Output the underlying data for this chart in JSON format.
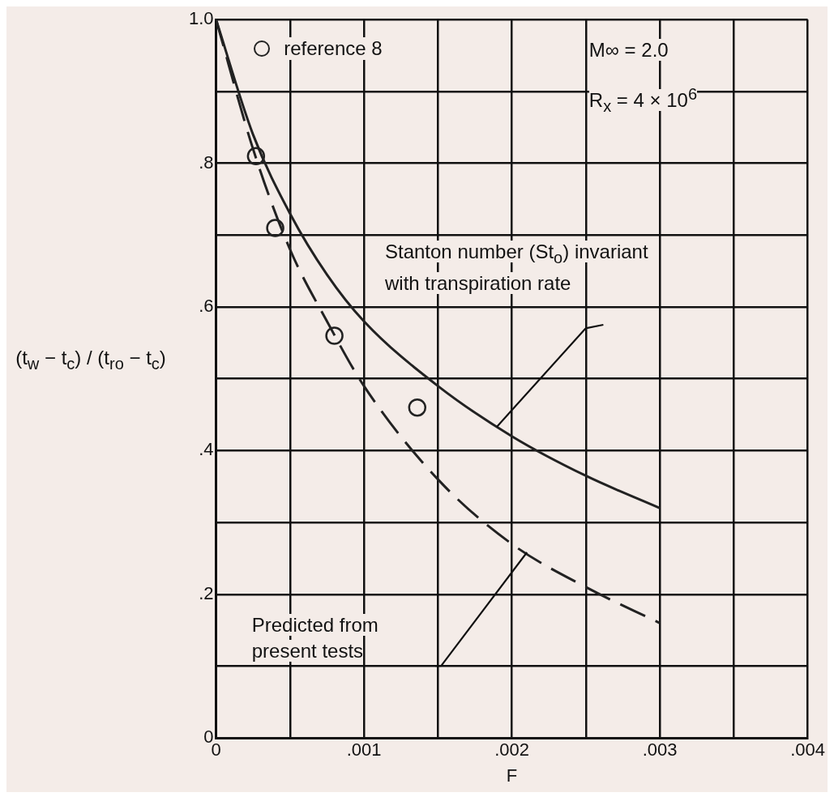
{
  "chart_data": {
    "type": "line",
    "xlabel": "F",
    "ylabel": "(t$_{w}$ − t$_{c}$) / (t$_{ro}$ − t$_{c}$)",
    "xlim": [
      0,
      0.004
    ],
    "ylim": [
      0,
      1.0
    ],
    "xticks": [
      {
        "value": 0,
        "label": "0"
      },
      {
        "value": 0.0005,
        "label": null
      },
      {
        "value": 0.001,
        "label": ".001"
      },
      {
        "value": 0.0015,
        "label": null
      },
      {
        "value": 0.002,
        "label": ".002"
      },
      {
        "value": 0.0025,
        "label": null
      },
      {
        "value": 0.003,
        "label": ".003"
      },
      {
        "value": 0.0035,
        "label": null
      },
      {
        "value": 0.004,
        "label": ".004"
      }
    ],
    "yticks": [
      {
        "value": 0,
        "label": "0"
      },
      {
        "value": 0.1,
        "label": null
      },
      {
        "value": 0.2,
        "label": ".2"
      },
      {
        "value": 0.3,
        "label": null
      },
      {
        "value": 0.4,
        "label": ".4"
      },
      {
        "value": 0.5,
        "label": null
      },
      {
        "value": 0.6,
        "label": ".6"
      },
      {
        "value": 0.7,
        "label": null
      },
      {
        "value": 0.8,
        "label": ".8"
      },
      {
        "value": 0.9,
        "label": null
      },
      {
        "value": 1.0,
        "label": "1.0"
      }
    ],
    "grid": true,
    "legend": "top",
    "series": [
      {
        "type": "line",
        "color": "#222222",
        "line_style": "solid",
        "marker": "none",
        "x": [
          0,
          0.00025,
          0.0005,
          0.00075,
          0.001,
          0.0015,
          0.002,
          0.0025,
          0.003
        ],
        "values": [
          1.0,
          0.84,
          0.73,
          0.645,
          0.58,
          0.49,
          0.42,
          0.365,
          0.32
        ]
      },
      {
        "type": "line",
        "color": "#222222",
        "line_style": "dashed",
        "marker": "none",
        "x": [
          0,
          0.00025,
          0.0005,
          0.00075,
          0.001,
          0.0015,
          0.002,
          0.0025,
          0.003
        ],
        "values": [
          1.0,
          0.82,
          0.68,
          0.58,
          0.49,
          0.36,
          0.27,
          0.21,
          0.16
        ]
      },
      {
        "type": "scatter",
        "name": "reference 8",
        "color": "#222222",
        "marker": "circle",
        "x": [
          0.00027,
          0.0004,
          0.0008,
          0.00136
        ],
        "values": [
          0.81,
          0.71,
          0.56,
          0.46
        ]
      }
    ],
    "annotations": [
      "M∞ = 2.0",
      "R$_{x}$ = 4 × 10$^{6}$",
      "Stanton number (St$_{o}$) invariant with transpiration rate",
      "Predicted from present tests"
    ]
  }
}
